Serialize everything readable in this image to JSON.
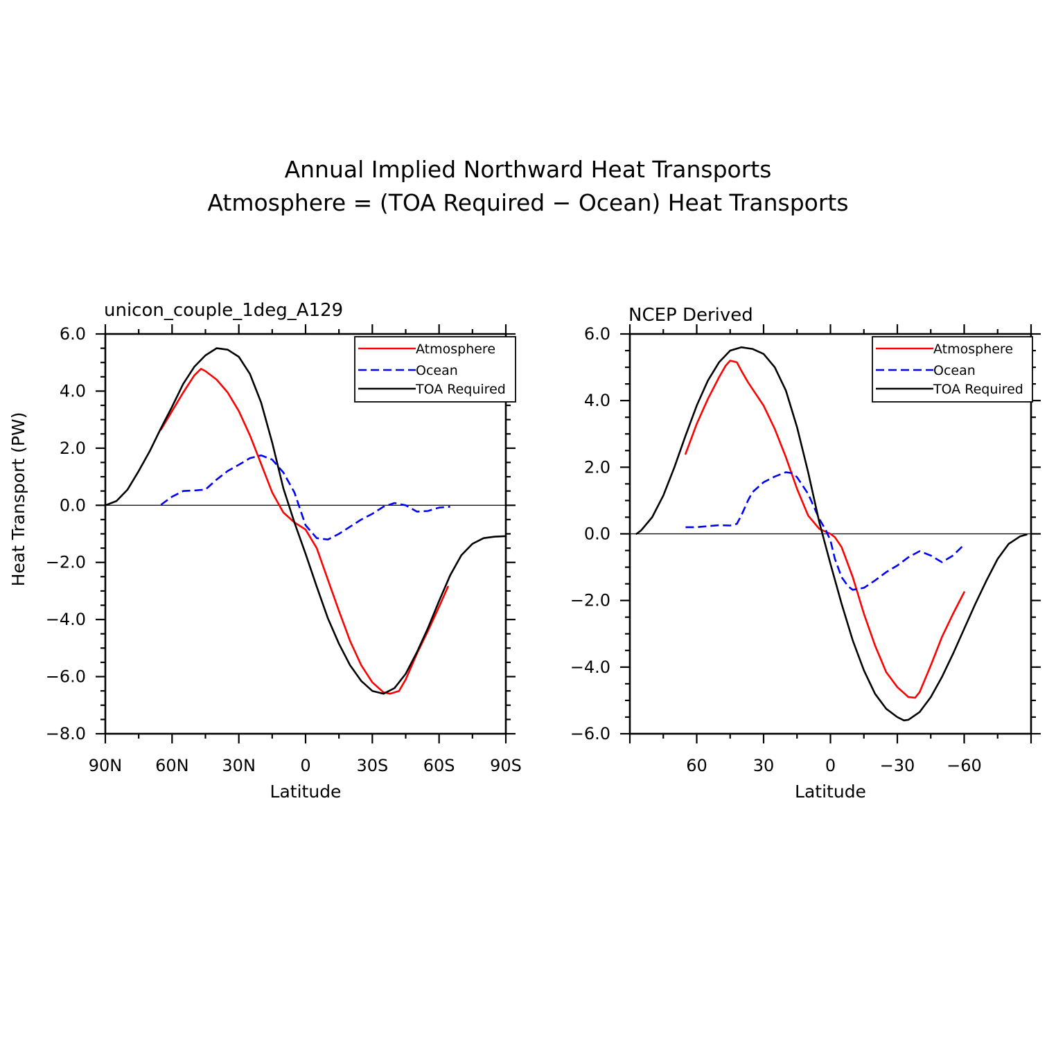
{
  "figure": {
    "title_line1": "Annual Implied Northward Heat Transports",
    "title_line2": "Atmosphere = (TOA Required − Ocean) Heat Transports"
  },
  "chart_data": [
    {
      "type": "line",
      "title": "unicon_couple_1deg_A129",
      "xlabel": "Latitude",
      "ylabel": "Heat Transport (PW)",
      "xlim": [
        90,
        -90
      ],
      "ylim": [
        -8,
        6
      ],
      "xticks": [
        90,
        60,
        30,
        0,
        -30,
        -60,
        -90
      ],
      "xtick_labels": [
        "90N",
        "60N",
        "30N",
        "0",
        "30S",
        "60S",
        "90S"
      ],
      "yticks": [
        6,
        4,
        2,
        0,
        -2,
        -4,
        -6,
        -8
      ],
      "ytick_labels": [
        "6.0",
        "4.0",
        "2.0",
        "0.0",
        "−2.0",
        "−4.0",
        "−6.0",
        "−8.0"
      ],
      "legend": [
        "Atmosphere",
        "Ocean",
        "TOA Required"
      ],
      "legend_placement": "top-right",
      "series": [
        {
          "name": "Atmosphere",
          "color": "#ff0000",
          "dash": "solid",
          "points": [
            [
              65,
              2.65
            ],
            [
              60,
              3.3
            ],
            [
              55,
              3.95
            ],
            [
              50,
              4.55
            ],
            [
              47,
              4.78
            ],
            [
              45,
              4.7
            ],
            [
              40,
              4.4
            ],
            [
              35,
              3.95
            ],
            [
              30,
              3.3
            ],
            [
              25,
              2.45
            ],
            [
              20,
              1.45
            ],
            [
              15,
              0.45
            ],
            [
              10,
              -0.25
            ],
            [
              5,
              -0.6
            ],
            [
              0,
              -0.85
            ],
            [
              -5,
              -1.5
            ],
            [
              -10,
              -2.6
            ],
            [
              -15,
              -3.7
            ],
            [
              -20,
              -4.75
            ],
            [
              -25,
              -5.6
            ],
            [
              -30,
              -6.2
            ],
            [
              -35,
              -6.55
            ],
            [
              -38,
              -6.6
            ],
            [
              -42,
              -6.5
            ],
            [
              -45,
              -6.1
            ],
            [
              -50,
              -5.2
            ],
            [
              -55,
              -4.4
            ],
            [
              -60,
              -3.55
            ],
            [
              -64,
              -2.85
            ]
          ]
        },
        {
          "name": "Ocean",
          "color": "#0000ff",
          "dash": "dashed",
          "points": [
            [
              65,
              0.02
            ],
            [
              60,
              0.3
            ],
            [
              55,
              0.5
            ],
            [
              50,
              0.52
            ],
            [
              45,
              0.55
            ],
            [
              40,
              0.9
            ],
            [
              35,
              1.2
            ],
            [
              30,
              1.42
            ],
            [
              25,
              1.65
            ],
            [
              20,
              1.75
            ],
            [
              15,
              1.6
            ],
            [
              10,
              1.15
            ],
            [
              5,
              0.45
            ],
            [
              0,
              -0.7
            ],
            [
              -5,
              -1.15
            ],
            [
              -10,
              -1.2
            ],
            [
              -15,
              -1.0
            ],
            [
              -20,
              -0.75
            ],
            [
              -25,
              -0.5
            ],
            [
              -30,
              -0.3
            ],
            [
              -35,
              -0.05
            ],
            [
              -40,
              0.08
            ],
            [
              -45,
              0.0
            ],
            [
              -50,
              -0.22
            ],
            [
              -55,
              -0.2
            ],
            [
              -60,
              -0.08
            ],
            [
              -65,
              -0.05
            ]
          ]
        },
        {
          "name": "TOA Required",
          "color": "#000000",
          "dash": "solid",
          "points": [
            [
              90,
              0.0
            ],
            [
              85,
              0.15
            ],
            [
              80,
              0.55
            ],
            [
              75,
              1.2
            ],
            [
              70,
              1.9
            ],
            [
              65,
              2.7
            ],
            [
              60,
              3.45
            ],
            [
              55,
              4.25
            ],
            [
              50,
              4.85
            ],
            [
              45,
              5.25
            ],
            [
              40,
              5.5
            ],
            [
              35,
              5.45
            ],
            [
              30,
              5.2
            ],
            [
              25,
              4.6
            ],
            [
              20,
              3.6
            ],
            [
              15,
              2.2
            ],
            [
              10,
              0.6
            ],
            [
              5,
              -0.6
            ],
            [
              0,
              -1.7
            ],
            [
              -5,
              -2.85
            ],
            [
              -10,
              -3.95
            ],
            [
              -15,
              -4.85
            ],
            [
              -20,
              -5.6
            ],
            [
              -25,
              -6.15
            ],
            [
              -30,
              -6.5
            ],
            [
              -35,
              -6.6
            ],
            [
              -40,
              -6.4
            ],
            [
              -45,
              -5.9
            ],
            [
              -50,
              -5.15
            ],
            [
              -55,
              -4.3
            ],
            [
              -60,
              -3.35
            ],
            [
              -65,
              -2.45
            ],
            [
              -70,
              -1.75
            ],
            [
              -75,
              -1.35
            ],
            [
              -80,
              -1.15
            ],
            [
              -85,
              -1.1
            ],
            [
              -90,
              -1.08
            ]
          ]
        }
      ]
    },
    {
      "type": "line",
      "title": "NCEP Derived",
      "xlabel": "Latitude",
      "ylabel": "",
      "xlim": [
        90,
        -90
      ],
      "ylim": [
        -6,
        6
      ],
      "xticks": [
        60,
        30,
        0,
        -30,
        -60
      ],
      "xtick_labels": [
        "60",
        "30",
        "0",
        "−30",
        "−60"
      ],
      "yticks": [
        6,
        4,
        2,
        0,
        -2,
        -4,
        -6
      ],
      "ytick_labels": [
        "6.0",
        "4.0",
        "2.0",
        "0.0",
        "−2.0",
        "−4.0",
        "−6.0"
      ],
      "legend": [
        "Atmosphere",
        "Ocean",
        "TOA Required"
      ],
      "legend_placement": "top-right",
      "series": [
        {
          "name": "Atmosphere",
          "color": "#ff0000",
          "dash": "solid",
          "points": [
            [
              65,
              2.4
            ],
            [
              60,
              3.3
            ],
            [
              55,
              4.05
            ],
            [
              50,
              4.7
            ],
            [
              47,
              5.05
            ],
            [
              45,
              5.2
            ],
            [
              42,
              5.15
            ],
            [
              40,
              4.9
            ],
            [
              37,
              4.55
            ],
            [
              35,
              4.35
            ],
            [
              30,
              3.85
            ],
            [
              25,
              3.15
            ],
            [
              20,
              2.3
            ],
            [
              15,
              1.35
            ],
            [
              10,
              0.55
            ],
            [
              5,
              0.15
            ],
            [
              0,
              0.0
            ],
            [
              -2,
              -0.1
            ],
            [
              -5,
              -0.4
            ],
            [
              -10,
              -1.3
            ],
            [
              -15,
              -2.4
            ],
            [
              -20,
              -3.35
            ],
            [
              -25,
              -4.15
            ],
            [
              -30,
              -4.6
            ],
            [
              -35,
              -4.9
            ],
            [
              -38,
              -4.92
            ],
            [
              -40,
              -4.75
            ],
            [
              -45,
              -3.95
            ],
            [
              -50,
              -3.1
            ],
            [
              -55,
              -2.4
            ],
            [
              -60,
              -1.75
            ]
          ]
        },
        {
          "name": "Ocean",
          "color": "#0000ff",
          "dash": "dashed",
          "points": [
            [
              65,
              0.2
            ],
            [
              60,
              0.2
            ],
            [
              55,
              0.23
            ],
            [
              50,
              0.26
            ],
            [
              45,
              0.25
            ],
            [
              42,
              0.3
            ],
            [
              40,
              0.55
            ],
            [
              37,
              1.0
            ],
            [
              35,
              1.25
            ],
            [
              30,
              1.55
            ],
            [
              25,
              1.72
            ],
            [
              20,
              1.85
            ],
            [
              17,
              1.82
            ],
            [
              15,
              1.7
            ],
            [
              10,
              1.2
            ],
            [
              5,
              0.45
            ],
            [
              2,
              0.1
            ],
            [
              0,
              -0.2
            ],
            [
              -2,
              -0.75
            ],
            [
              -5,
              -1.3
            ],
            [
              -8,
              -1.58
            ],
            [
              -10,
              -1.68
            ],
            [
              -15,
              -1.62
            ],
            [
              -20,
              -1.4
            ],
            [
              -25,
              -1.15
            ],
            [
              -30,
              -0.95
            ],
            [
              -35,
              -0.7
            ],
            [
              -40,
              -0.52
            ],
            [
              -45,
              -0.65
            ],
            [
              -50,
              -0.85
            ],
            [
              -55,
              -0.65
            ],
            [
              -60,
              -0.32
            ]
          ]
        },
        {
          "name": "TOA Required",
          "color": "#000000",
          "dash": "solid",
          "points": [
            [
              87,
              0.0
            ],
            [
              85,
              0.1
            ],
            [
              80,
              0.5
            ],
            [
              75,
              1.15
            ],
            [
              70,
              2.0
            ],
            [
              65,
              2.95
            ],
            [
              60,
              3.85
            ],
            [
              55,
              4.6
            ],
            [
              50,
              5.15
            ],
            [
              45,
              5.5
            ],
            [
              40,
              5.6
            ],
            [
              35,
              5.55
            ],
            [
              30,
              5.4
            ],
            [
              25,
              5.0
            ],
            [
              20,
              4.3
            ],
            [
              15,
              3.2
            ],
            [
              10,
              1.85
            ],
            [
              5,
              0.35
            ],
            [
              0,
              -0.9
            ],
            [
              -5,
              -2.1
            ],
            [
              -10,
              -3.2
            ],
            [
              -15,
              -4.1
            ],
            [
              -20,
              -4.8
            ],
            [
              -25,
              -5.25
            ],
            [
              -30,
              -5.5
            ],
            [
              -33,
              -5.6
            ],
            [
              -35,
              -5.58
            ],
            [
              -40,
              -5.35
            ],
            [
              -45,
              -4.9
            ],
            [
              -50,
              -4.3
            ],
            [
              -55,
              -3.6
            ],
            [
              -60,
              -2.85
            ],
            [
              -65,
              -2.1
            ],
            [
              -70,
              -1.4
            ],
            [
              -75,
              -0.75
            ],
            [
              -80,
              -0.3
            ],
            [
              -85,
              -0.08
            ],
            [
              -88,
              -0.02
            ]
          ]
        }
      ]
    }
  ]
}
